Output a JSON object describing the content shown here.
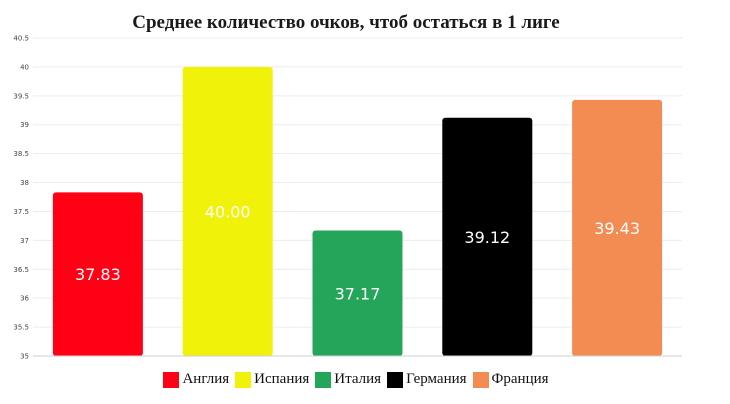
{
  "chart_data": {
    "type": "bar",
    "title": "Среднее количество очков, чтоб остаться в 1 лиге",
    "categories": [
      "Англия",
      "Испания",
      "Италия",
      "Германия",
      "Франция"
    ],
    "values": [
      37.83,
      40.0,
      37.17,
      39.12,
      39.43
    ],
    "value_labels": [
      "37.83",
      "40.00",
      "37.17",
      "39.12",
      "39.43"
    ],
    "colors": [
      "#ff0015",
      "#f0f20a",
      "#24a65a",
      "#000000",
      "#f28c52"
    ],
    "label_colors": [
      "#ffffff",
      "#ffffff",
      "#ffffff",
      "#ffffff",
      "#ffffff"
    ],
    "ylim": [
      35,
      40.5
    ],
    "yticks": [
      "35",
      "35.5",
      "36",
      "36.5",
      "37",
      "37.5",
      "38",
      "38.5",
      "39",
      "39.5",
      "40",
      "40.5"
    ],
    "grid": true,
    "legend_position": "bottom",
    "xlabel": "",
    "ylabel": ""
  }
}
